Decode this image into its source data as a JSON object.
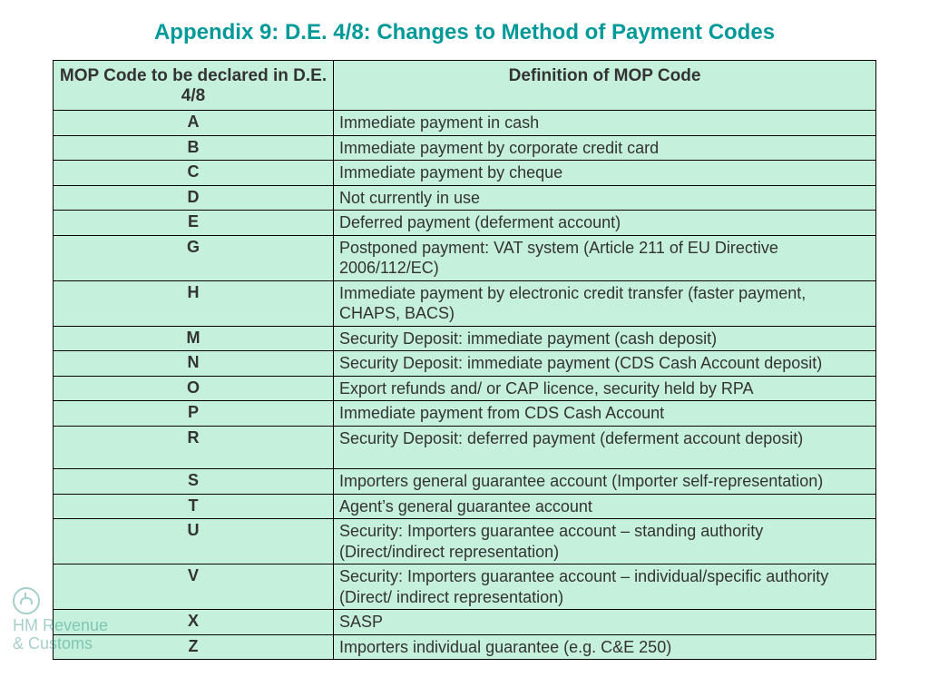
{
  "title": {
    "text": "Appendix 9: D.E. 4/8: Changes to Method of Payment Codes",
    "color": "#009999",
    "fontsize": 24
  },
  "table": {
    "background_color": "#c5f0dc",
    "border_color": "#000000",
    "header_fontsize": 19,
    "body_fontsize": 18,
    "columns": [
      "MOP Code to be declared in D.E. 4/8",
      "Definition of MOP Code"
    ],
    "rows": [
      {
        "code": "A",
        "def": "Immediate payment in cash"
      },
      {
        "code": "B",
        "def": "Immediate payment by corporate credit card"
      },
      {
        "code": "C",
        "def": "Immediate payment by cheque"
      },
      {
        "code": "D",
        "def": "Not currently in use"
      },
      {
        "code": "E",
        "def": "Deferred payment (deferment account)"
      },
      {
        "code": "G",
        "def": "Postponed payment: VAT system (Article 211 of EU Directive 2006/112/EC)"
      },
      {
        "code": "H",
        "def": "Immediate payment by electronic credit transfer (faster payment, CHAPS, BACS)"
      },
      {
        "code": "M",
        "def": "Security Deposit: immediate payment (cash deposit)"
      },
      {
        "code": "N",
        "def": "Security Deposit: immediate payment (CDS Cash Account deposit)"
      },
      {
        "code": "O",
        "def": "Export refunds and/ or CAP licence, security held by RPA"
      },
      {
        "code": "P",
        "def": "Immediate payment from CDS Cash Account"
      },
      {
        "code": "R",
        "def": "Security Deposit: deferred payment (deferment account deposit)",
        "blank_after": true
      },
      {
        "code": "S",
        "def": "Importers general guarantee account (Importer self-representation)"
      },
      {
        "code": "T",
        "def": "Agent’s general guarantee account"
      },
      {
        "code": "U",
        "def": "Security: Importers guarantee account – standing authority (Direct/indirect representation)"
      },
      {
        "code": "V",
        "def": "Security: Importers guarantee account – individual/specific authority (Direct/ indirect representation)"
      },
      {
        "code": "X",
        "def": "SASP"
      },
      {
        "code": "Z",
        "def": "Importers individual guarantee (e.g. C&E 250)"
      }
    ]
  },
  "watermark": {
    "line1": "HM Revenue",
    "line2": "& Customs",
    "fontsize": 18,
    "color": "#00796b"
  }
}
